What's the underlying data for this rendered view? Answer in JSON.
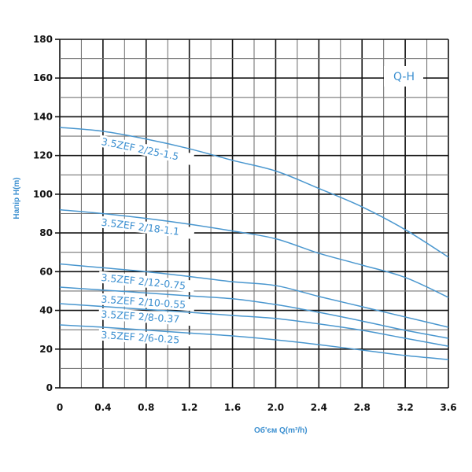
{
  "chart_data": {
    "type": "line",
    "title": "",
    "legend_label": "Q-H",
    "xlabel": "Об'єм Q(m³/h)",
    "ylabel": "Напір H(m)",
    "xlim": [
      0,
      3.6
    ],
    "ylim": [
      0,
      180
    ],
    "x_ticks": [
      "0",
      "0.4",
      "0.8",
      "1.2",
      "1.6",
      "2.0",
      "2.4",
      "2.8",
      "3.2",
      "3.6"
    ],
    "y_ticks": [
      "0",
      "20",
      "40",
      "60",
      "80",
      "100",
      "120",
      "140",
      "160",
      "180"
    ],
    "grid": true,
    "line_color": "#4a97cf",
    "x": [
      0,
      0.4,
      0.8,
      1.2,
      1.6,
      2.0,
      2.4,
      2.8,
      3.2,
      3.6
    ],
    "series": [
      {
        "name": "3.5ZEF 2/25-1.5",
        "values": [
          134.5,
          132.5,
          128.5,
          123.5,
          117.5,
          112,
          103,
          93.5,
          81.7,
          67.5
        ]
      },
      {
        "name": "3.5ZEF 2/18-1.1",
        "values": [
          92,
          90,
          87.5,
          84.5,
          81,
          77,
          69.5,
          63.4,
          57,
          46.7
        ]
      },
      {
        "name": "3.5ZEF 2/12-0.75",
        "values": [
          64,
          62,
          60,
          57.5,
          54.8,
          52.8,
          47.2,
          41.9,
          36.6,
          31.3
        ]
      },
      {
        "name": "3.5ZEF 2/10-0.55",
        "values": [
          52,
          50.5,
          49,
          47.5,
          46,
          43,
          39,
          34.5,
          29.7,
          25.6
        ]
      },
      {
        "name": "3.5ZEF 2/8-0.37",
        "values": [
          43.5,
          42,
          40.5,
          39,
          37.4,
          35.8,
          33,
          29.7,
          25.6,
          21.5
        ]
      },
      {
        "name": "3.5ZEF 2/6-0.25",
        "values": [
          32.5,
          31.3,
          29.8,
          28.3,
          26.8,
          24.8,
          22.3,
          19.5,
          16.7,
          14.6
        ]
      }
    ]
  }
}
